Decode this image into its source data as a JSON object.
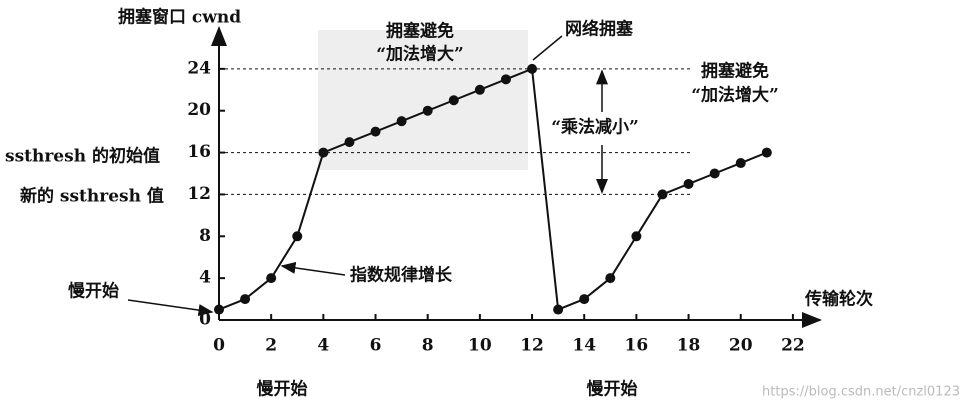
{
  "chart_data": {
    "type": "line",
    "x_label": "传输轮次",
    "y_label": "拥塞窗口 cwnd",
    "x": [
      0,
      1,
      2,
      3,
      4,
      5,
      6,
      7,
      8,
      9,
      10,
      11,
      12,
      13,
      14,
      15,
      16,
      17,
      18,
      19,
      20,
      21
    ],
    "values": [
      1,
      2,
      4,
      8,
      16,
      17,
      18,
      19,
      20,
      21,
      22,
      23,
      24,
      1,
      2,
      4,
      8,
      12,
      13,
      14,
      15,
      16
    ],
    "color": "#111111",
    "xlim": [
      0,
      23
    ],
    "ylim": [
      0,
      28
    ],
    "xticks": [
      0,
      2,
      4,
      6,
      8,
      10,
      12,
      14,
      16,
      18,
      20,
      22
    ],
    "yticks": [
      0,
      4,
      8,
      12,
      16,
      20,
      24
    ],
    "reference_lines": [
      24,
      16,
      12
    ],
    "annotations": [
      "拥塞避免",
      "“加法增大”",
      "网络拥塞",
      "“乘法减小”",
      "ssthresh 的初始值",
      "新的 ssthresh 值",
      "慢开始",
      "指数规律增长",
      "拥塞避免",
      "“加法增大”",
      "慢开始",
      "慢开始",
      "https://blog.csdn.net/cnzl0123"
    ]
  }
}
